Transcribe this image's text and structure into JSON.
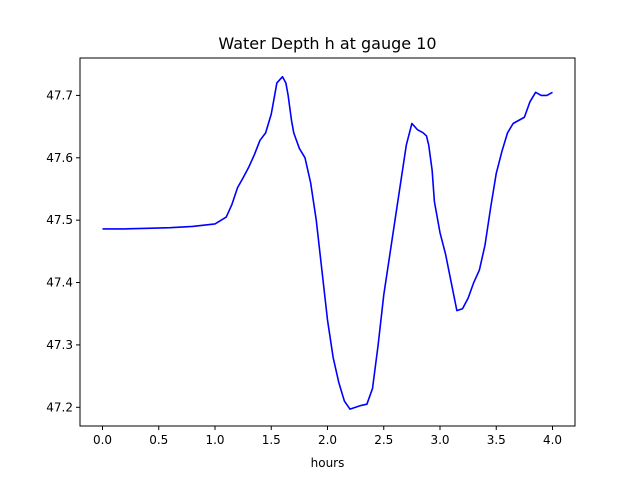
{
  "chart_data": {
    "type": "line",
    "title": "Water Depth h at gauge 10",
    "xlabel": "hours",
    "ylabel": "",
    "xlim": [
      -0.2,
      4.2
    ],
    "ylim": [
      47.17,
      47.76
    ],
    "grid": false,
    "xticks": [
      0.0,
      0.5,
      1.0,
      1.5,
      2.0,
      2.5,
      3.0,
      3.5,
      4.0
    ],
    "xtick_labels": [
      "0.0",
      "0.5",
      "1.0",
      "1.5",
      "2.0",
      "2.5",
      "3.0",
      "3.5",
      "4.0"
    ],
    "yticks": [
      47.2,
      47.3,
      47.4,
      47.5,
      47.6,
      47.7
    ],
    "ytick_labels": [
      "47.2",
      "47.3",
      "47.4",
      "47.5",
      "47.6",
      "47.7"
    ],
    "series": [
      {
        "color": "#0000ff",
        "x": [
          0.0,
          0.2,
          0.4,
          0.6,
          0.8,
          1.0,
          1.1,
          1.15,
          1.2,
          1.25,
          1.3,
          1.35,
          1.4,
          1.45,
          1.5,
          1.55,
          1.6,
          1.63,
          1.65,
          1.68,
          1.7,
          1.75,
          1.8,
          1.85,
          1.9,
          1.95,
          2.0,
          2.05,
          2.1,
          2.15,
          2.2,
          2.25,
          2.3,
          2.35,
          2.4,
          2.45,
          2.5,
          2.55,
          2.6,
          2.65,
          2.7,
          2.75,
          2.8,
          2.85,
          2.88,
          2.9,
          2.93,
          2.95,
          3.0,
          3.05,
          3.1,
          3.15,
          3.2,
          3.25,
          3.3,
          3.35,
          3.4,
          3.45,
          3.5,
          3.55,
          3.6,
          3.65,
          3.7,
          3.75,
          3.8,
          3.85,
          3.9,
          3.95,
          4.0
        ],
        "y": [
          47.486,
          47.486,
          47.487,
          47.488,
          47.49,
          47.494,
          47.505,
          47.525,
          47.552,
          47.568,
          47.585,
          47.605,
          47.628,
          47.64,
          47.67,
          47.72,
          47.73,
          47.72,
          47.7,
          47.66,
          47.64,
          47.615,
          47.6,
          47.56,
          47.5,
          47.42,
          47.34,
          47.28,
          47.24,
          47.21,
          47.197,
          47.2,
          47.203,
          47.205,
          47.23,
          47.3,
          47.38,
          47.44,
          47.5,
          47.56,
          47.62,
          47.655,
          47.645,
          47.64,
          47.635,
          47.62,
          47.58,
          47.53,
          47.48,
          47.445,
          47.4,
          47.355,
          47.358,
          47.375,
          47.4,
          47.42,
          47.46,
          47.52,
          47.575,
          47.61,
          47.64,
          47.655,
          47.66,
          47.665,
          47.69,
          47.705,
          47.7,
          47.7,
          47.705
        ]
      }
    ]
  }
}
